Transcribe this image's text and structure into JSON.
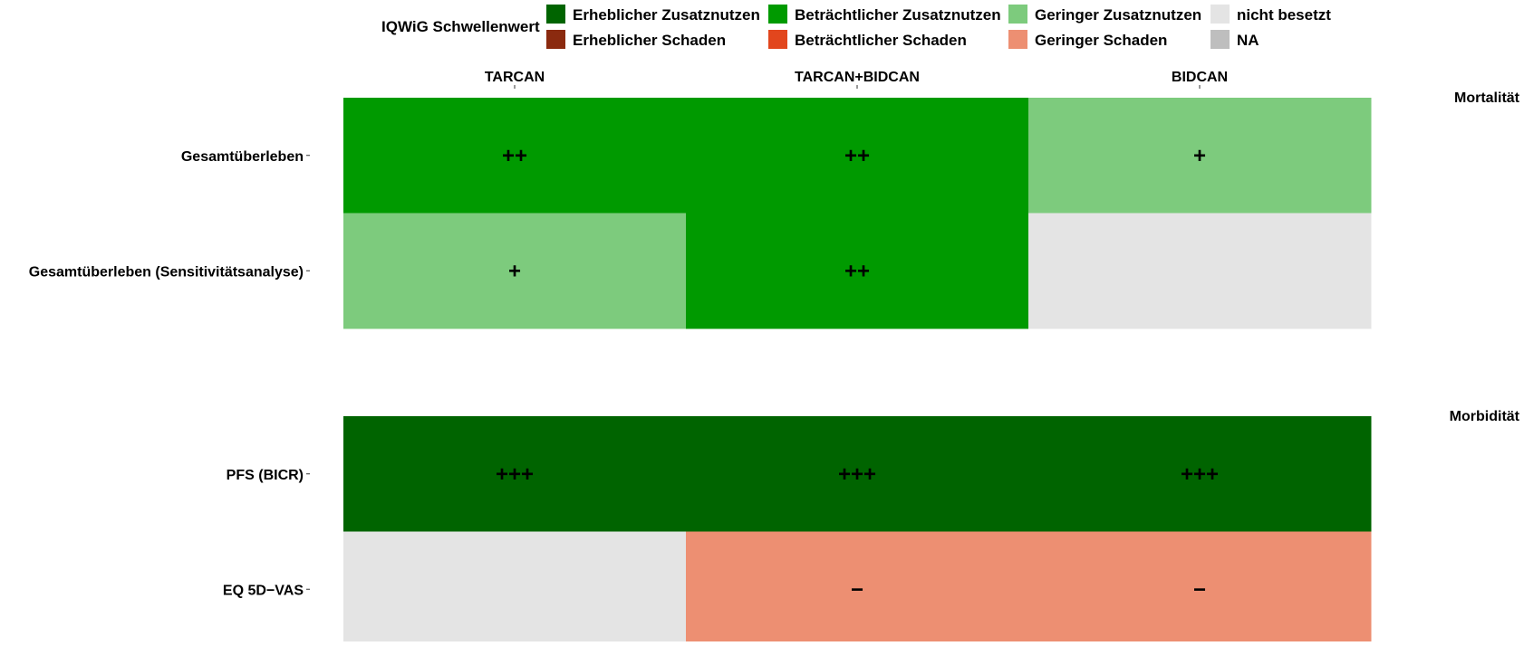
{
  "chart_data": {
    "type": "heatmap",
    "legend": {
      "title": "IQWiG Schwellenwert",
      "placement": "top",
      "entries": [
        {
          "key": "erheblich_nutzen",
          "label": "Erheblicher Zusatznutzen",
          "color": "#006400"
        },
        {
          "key": "betraechtlich_nutzen",
          "label": "Beträchtlicher Zusatznutzen",
          "color": "#009a00"
        },
        {
          "key": "gering_nutzen",
          "label": "Geringer Zusatznutzen",
          "color": "#7dcb7d"
        },
        {
          "key": "nicht_besetzt",
          "label": "nicht besetzt",
          "color": "#e4e4e4"
        },
        {
          "key": "erheblich_schaden",
          "label": "Erheblicher Schaden",
          "color": "#8b2a0f"
        },
        {
          "key": "betraechtlich_schaden",
          "label": "Beträchtlicher Schaden",
          "color": "#e2461d"
        },
        {
          "key": "gering_schaden",
          "label": "Geringer Schaden",
          "color": "#ed8f72"
        },
        {
          "key": "na",
          "label": "NA",
          "color": "#bebebe"
        }
      ]
    },
    "columns": [
      "TARCAN",
      "TARCAN+BIDCAN",
      "BIDCAN"
    ],
    "facets": [
      {
        "name": "Mortalität",
        "rows": [
          {
            "label": "Gesamtüberleben",
            "cells": [
              {
                "category": "betraechtlich_nutzen",
                "symbol": "++"
              },
              {
                "category": "betraechtlich_nutzen",
                "symbol": "++"
              },
              {
                "category": "gering_nutzen",
                "symbol": "+"
              }
            ]
          },
          {
            "label": "Gesamtüberleben (Sensitivitätsanalyse)",
            "cells": [
              {
                "category": "gering_nutzen",
                "symbol": "+"
              },
              {
                "category": "betraechtlich_nutzen",
                "symbol": "++"
              },
              {
                "category": "nicht_besetzt",
                "symbol": ""
              }
            ]
          }
        ]
      },
      {
        "name": "Morbidität",
        "rows": [
          {
            "label": "PFS (BICR)",
            "cells": [
              {
                "category": "erheblich_nutzen",
                "symbol": "+++"
              },
              {
                "category": "erheblich_nutzen",
                "symbol": "+++"
              },
              {
                "category": "erheblich_nutzen",
                "symbol": "+++"
              }
            ]
          },
          {
            "label": "EQ 5D−VAS",
            "cells": [
              {
                "category": "nicht_besetzt",
                "symbol": ""
              },
              {
                "category": "gering_schaden",
                "symbol": "−"
              },
              {
                "category": "gering_schaden",
                "symbol": "−"
              }
            ]
          }
        ]
      }
    ],
    "grid": false
  }
}
